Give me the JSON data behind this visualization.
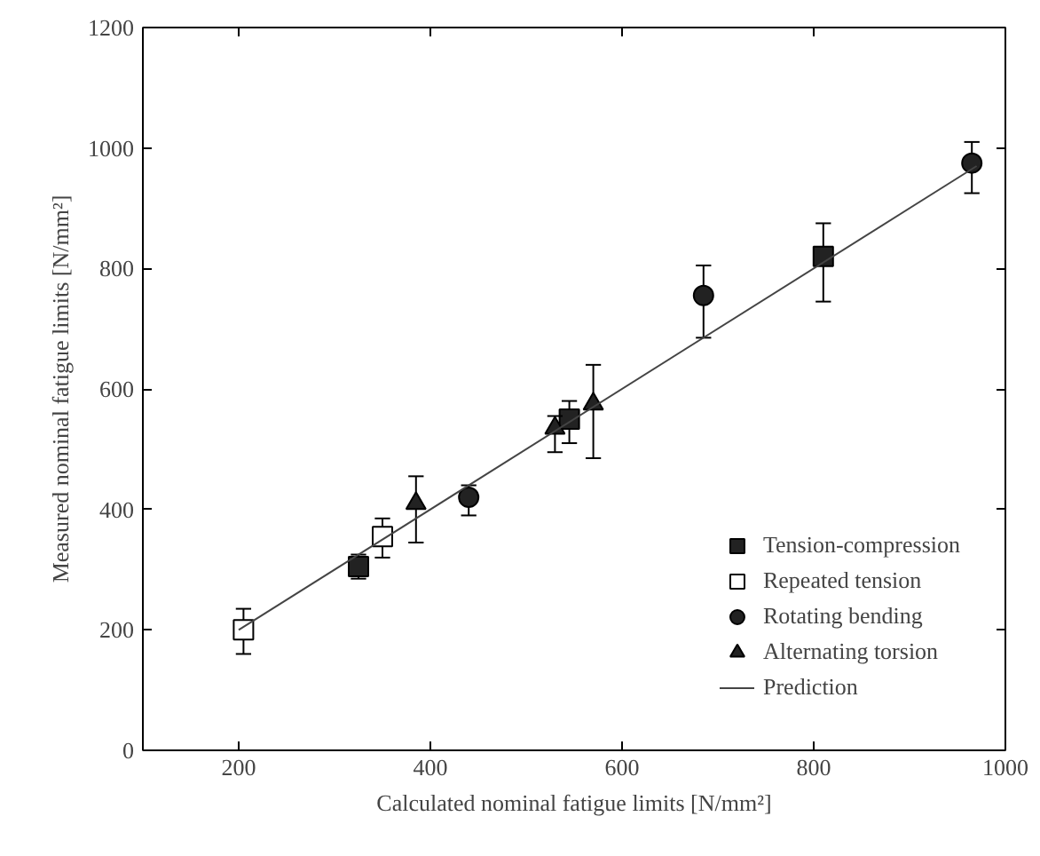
{
  "chart_data": {
    "type": "scatter",
    "xlabel": "Calculated nominal fatigue limits [N/mm²]",
    "ylabel": "Measured nominal fatigue limits [N/mm²]",
    "xlim": [
      100,
      1000
    ],
    "ylim": [
      0,
      1200
    ],
    "xticks": [
      200,
      400,
      600,
      800,
      1000
    ],
    "yticks": [
      0,
      200,
      400,
      600,
      800,
      1000,
      1200
    ],
    "grid": false,
    "legend": "bottom right",
    "series": [
      {
        "name": "Tension-compression",
        "color": "#222222",
        "marker": "square",
        "x": [
          325,
          545,
          810
        ],
        "values": [
          305,
          550,
          820
        ],
        "errors": [
          [
            285,
            325
          ],
          [
            510,
            580
          ],
          [
            745,
            875
          ]
        ]
      },
      {
        "name": "Repeated tension",
        "color": "#ffffff",
        "marker": "square",
        "x": [
          205,
          350
        ],
        "values": [
          200,
          355
        ],
        "errors": [
          [
            160,
            235
          ],
          [
            320,
            385
          ]
        ]
      },
      {
        "name": "Rotating bending",
        "color": "#222222",
        "marker": "circle",
        "x": [
          440,
          685,
          965
        ],
        "values": [
          420,
          755,
          975
        ],
        "errors": [
          [
            390,
            440
          ],
          [
            685,
            805
          ],
          [
            925,
            1010
          ]
        ]
      },
      {
        "name": "Alternating torsion",
        "color": "#222222",
        "marker": "triangle",
        "x": [
          385,
          530,
          570
        ],
        "values": [
          410,
          535,
          575
        ],
        "errors": [
          [
            345,
            455
          ],
          [
            495,
            555
          ],
          [
            485,
            640
          ]
        ]
      },
      {
        "name": "Prediction",
        "type": "line",
        "color": "#444444",
        "marker": "none",
        "x": [
          200,
          970
        ],
        "values": [
          200,
          970
        ]
      }
    ]
  }
}
